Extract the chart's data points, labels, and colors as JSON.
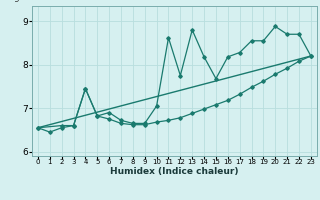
{
  "title": "",
  "xlabel": "Humidex (Indice chaleur)",
  "bg_color": "#d6f0f0",
  "grid_color": "#b8dede",
  "line_color": "#1a7a6e",
  "xlim": [
    -0.5,
    23.5
  ],
  "ylim": [
    5.9,
    9.35
  ],
  "xticks": [
    0,
    1,
    2,
    3,
    4,
    5,
    6,
    7,
    8,
    9,
    10,
    11,
    12,
    13,
    14,
    15,
    16,
    17,
    18,
    19,
    20,
    21,
    22,
    23
  ],
  "yticks": [
    6,
    7,
    8,
    9
  ],
  "curve1_x": [
    0,
    1,
    2,
    3,
    4,
    5,
    6,
    7,
    8,
    9,
    10,
    11,
    12,
    13,
    14,
    15,
    16,
    17,
    18,
    19,
    20,
    21,
    22,
    23
  ],
  "curve1_y": [
    6.55,
    6.45,
    6.55,
    6.6,
    7.45,
    6.82,
    6.75,
    6.65,
    6.62,
    6.62,
    6.68,
    6.72,
    6.78,
    6.88,
    6.98,
    7.08,
    7.18,
    7.32,
    7.48,
    7.62,
    7.78,
    7.92,
    8.08,
    8.2
  ],
  "curve2_x": [
    0,
    2,
    3,
    4,
    5,
    6,
    7,
    8,
    9,
    10,
    11,
    12,
    13,
    14,
    15,
    16,
    17,
    18,
    19,
    20,
    21,
    22,
    23
  ],
  "curve2_y": [
    6.55,
    6.6,
    6.6,
    7.45,
    6.82,
    6.9,
    6.72,
    6.65,
    6.65,
    7.05,
    8.62,
    7.75,
    8.8,
    8.18,
    7.68,
    8.18,
    8.28,
    8.55,
    8.55,
    8.88,
    8.7,
    8.7,
    8.2
  ],
  "trend_x": [
    0,
    23
  ],
  "trend_y": [
    6.55,
    8.2
  ]
}
